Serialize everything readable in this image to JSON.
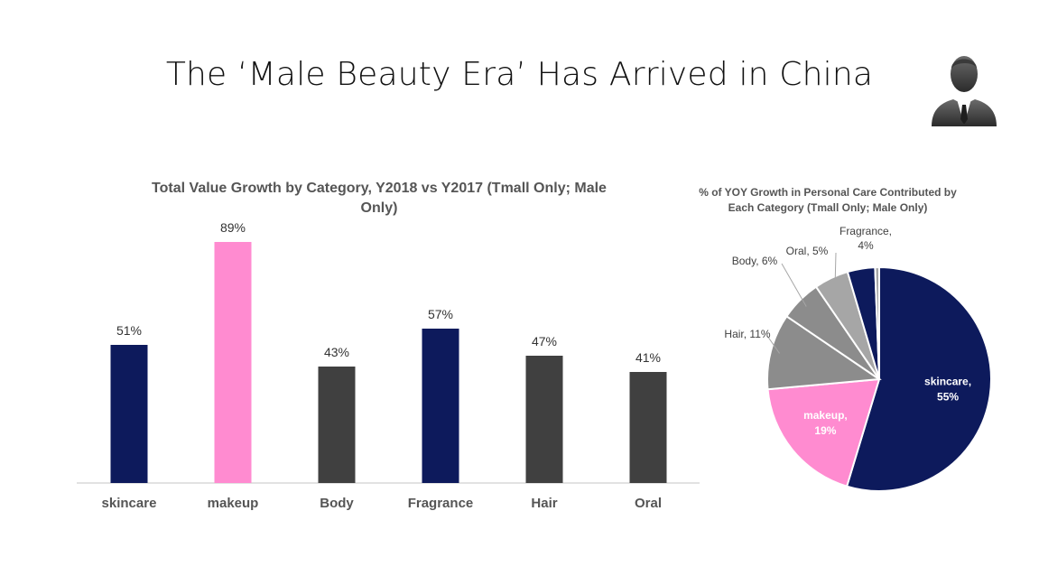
{
  "slide": {
    "title": "The ‘Male Beauty Era’ Has Arrived in China",
    "icon": "businessman-icon"
  },
  "colors": {
    "navy": "#0d1a5c",
    "pink": "#ff8bd0",
    "dark_gray": "#404040",
    "gray": "#8c8c8c",
    "light_gray": "#a6a6a6",
    "axis": "#d9d9d9"
  },
  "chart_data": [
    {
      "type": "bar",
      "title": "Total Value Growth by Category, Y2018 vs Y2017 (Tmall Only; Male Only)",
      "title_lines": [
        "Total Value Growth by Category, Y2018 vs Y2017 (Tmall Only; Male",
        "Only)"
      ],
      "categories": [
        "skincare",
        "makeup",
        "Body",
        "Fragrance",
        "Hair",
        "Oral"
      ],
      "values": [
        51,
        89,
        43,
        57,
        47,
        41
      ],
      "value_labels": [
        "51%",
        "89%",
        "43%",
        "57%",
        "47%",
        "41%"
      ],
      "bar_colors": [
        "#0d1a5c",
        "#ff8bd0",
        "#404040",
        "#0d1a5c",
        "#404040",
        "#404040"
      ],
      "ylim": [
        0,
        100
      ],
      "grid": false,
      "legend": "none"
    },
    {
      "type": "pie",
      "title": "% of YOY Growth in Personal Care Contributed by Each Category (Tmall Only; Male Only)",
      "title_lines": [
        "% of YOY Growth in Personal Care Contributed by",
        "Each Category (Tmall Only; Male Only)"
      ],
      "slices": [
        {
          "name": "skincare",
          "value": 55,
          "label_lines": [
            "skincare,",
            "55%"
          ],
          "color": "#0d1a5c"
        },
        {
          "name": "makeup",
          "value": 19,
          "label_lines": [
            "makeup,",
            "19%"
          ],
          "color": "#ff8bd0"
        },
        {
          "name": "Hair",
          "value": 11,
          "label_lines": [
            "Hair, 11%"
          ],
          "color": "#8c8c8c"
        },
        {
          "name": "Body",
          "value": 6,
          "label_lines": [
            "Body, 6%"
          ],
          "color": "#8c8c8c"
        },
        {
          "name": "Oral",
          "value": 5,
          "label_lines": [
            "Oral,  5%"
          ],
          "color": "#a6a6a6"
        },
        {
          "name": "Fragrance",
          "value": 4,
          "label_lines": [
            "Fragrance,",
            "4%"
          ],
          "color": "#0d1a5c"
        },
        {
          "name": "Other",
          "value": 0.6,
          "label_lines": [],
          "color": "#a6a6a6"
        }
      ],
      "legend": "none"
    }
  ]
}
